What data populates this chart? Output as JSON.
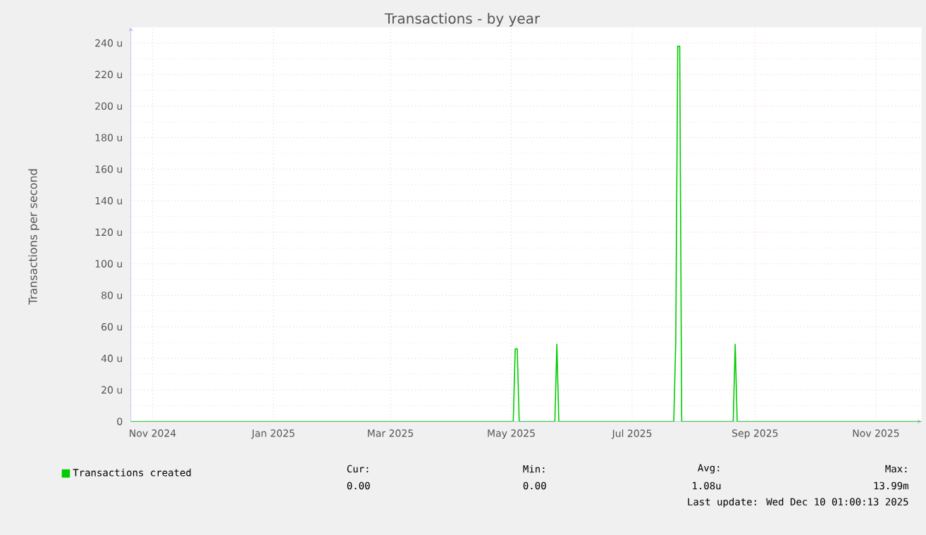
{
  "chart_data": {
    "type": "line",
    "title": "Transactions - by year",
    "ylabel": "Transactions per second",
    "x": [
      "2024-10-21",
      "2025-05-02",
      "2025-05-03",
      "2025-05-04",
      "2025-05-05",
      "2025-05-23",
      "2025-05-24",
      "2025-05-25",
      "2025-07-22",
      "2025-07-23",
      "2025-07-24",
      "2025-07-25",
      "2025-07-26",
      "2025-08-21",
      "2025-08-22",
      "2025-08-23",
      "2025-11-24"
    ],
    "series": [
      {
        "name": "Transactions created",
        "color": "#00cc00",
        "values": [
          0,
          0,
          46,
          46,
          0,
          0,
          49,
          0,
          0,
          51,
          238,
          238,
          0,
          0,
          49,
          0,
          0
        ]
      }
    ],
    "xlim": [
      "2024-10-21",
      "2025-11-24"
    ],
    "xticks": [
      {
        "value": "2024-11-01",
        "label": "Nov 2024"
      },
      {
        "value": "2025-01-01",
        "label": "Jan 2025"
      },
      {
        "value": "2025-03-01",
        "label": "Mar 2025"
      },
      {
        "value": "2025-05-01",
        "label": "May 2025"
      },
      {
        "value": "2025-07-01",
        "label": "Jul 2025"
      },
      {
        "value": "2025-09-01",
        "label": "Sep 2025"
      },
      {
        "value": "2025-11-01",
        "label": "Nov 2025"
      }
    ],
    "ylim": [
      0,
      250
    ],
    "yticks": [
      0,
      {
        "value": 20,
        "label": "20 u"
      },
      {
        "value": 40,
        "label": "40 u"
      },
      {
        "value": 60,
        "label": "60 u"
      },
      {
        "value": 80,
        "label": "80 u"
      },
      {
        "value": 100,
        "label": "100 u"
      },
      {
        "value": 120,
        "label": "120 u"
      },
      {
        "value": 140,
        "label": "140 u"
      },
      {
        "value": 160,
        "label": "160 u"
      },
      {
        "value": 180,
        "label": "180 u"
      },
      {
        "value": 200,
        "label": "200 u"
      },
      {
        "value": 220,
        "label": "220 u"
      },
      {
        "value": 240,
        "label": "240 u"
      }
    ],
    "grid": true,
    "legend": "bottom",
    "marker": "none",
    "line_style": "solid",
    "annotations": [
      "Cur:",
      "0.00",
      "Min:",
      "0.00",
      "Avg:",
      "1.08u",
      "Max:",
      "13.99m",
      "Last update: Wed Dec 10 01:00:13 2025"
    ]
  }
}
